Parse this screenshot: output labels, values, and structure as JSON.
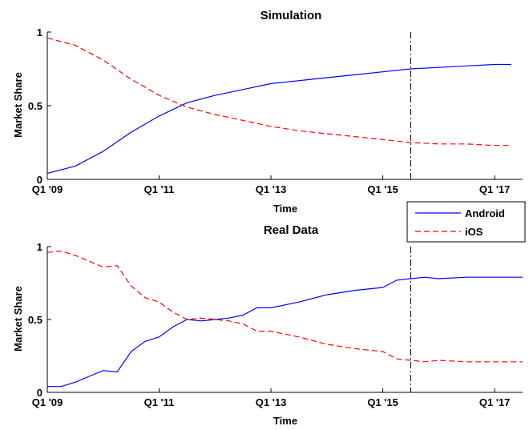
{
  "chart_data": [
    {
      "type": "line",
      "title": "Simulation",
      "xlabel": "Time",
      "ylabel": "Market Share",
      "x_ticks": [
        "Q1 '09",
        "Q1 '11",
        "Q1 '13",
        "Q1 '15",
        "Q1 '17"
      ],
      "y_ticks": [
        "0",
        "0.5",
        "1"
      ],
      "xlim": [
        2009,
        2017.5
      ],
      "ylim": [
        0,
        1
      ],
      "vline": 2015.5,
      "series": [
        {
          "name": "Android",
          "color": "#0000ff",
          "style": "solid",
          "points": [
            [
              2009,
              0.04
            ],
            [
              2009.5,
              0.09
            ],
            [
              2010,
              0.19
            ],
            [
              2010.5,
              0.32
            ],
            [
              2011,
              0.43
            ],
            [
              2011.5,
              0.52
            ],
            [
              2012,
              0.57
            ],
            [
              2012.5,
              0.61
            ],
            [
              2013,
              0.65
            ],
            [
              2013.5,
              0.67
            ],
            [
              2014,
              0.69
            ],
            [
              2014.5,
              0.71
            ],
            [
              2015,
              0.73
            ],
            [
              2015.5,
              0.75
            ],
            [
              2016,
              0.76
            ],
            [
              2016.5,
              0.77
            ],
            [
              2017,
              0.78
            ],
            [
              2017.3,
              0.78
            ]
          ]
        },
        {
          "name": "iOS",
          "color": "#ff0000",
          "style": "dashed",
          "points": [
            [
              2009,
              0.96
            ],
            [
              2009.5,
              0.91
            ],
            [
              2010,
              0.81
            ],
            [
              2010.5,
              0.68
            ],
            [
              2011,
              0.57
            ],
            [
              2011.5,
              0.49
            ],
            [
              2012,
              0.44
            ],
            [
              2012.5,
              0.4
            ],
            [
              2013,
              0.36
            ],
            [
              2013.5,
              0.33
            ],
            [
              2014,
              0.31
            ],
            [
              2014.5,
              0.29
            ],
            [
              2015,
              0.27
            ],
            [
              2015.5,
              0.25
            ],
            [
              2016,
              0.24
            ],
            [
              2016.5,
              0.24
            ],
            [
              2017,
              0.23
            ],
            [
              2017.3,
              0.23
            ]
          ]
        }
      ]
    },
    {
      "type": "line",
      "title": "Real Data",
      "xlabel": "Time",
      "ylabel": "Market Share",
      "x_ticks": [
        "Q1 '09",
        "Q1 '11",
        "Q1 '13",
        "Q1 '15",
        "Q1 '17"
      ],
      "y_ticks": [
        "0",
        "0.5",
        "1"
      ],
      "xlim": [
        2009,
        2017.5
      ],
      "ylim": [
        0,
        1
      ],
      "vline": 2015.5,
      "legend": {
        "position": "top-right",
        "entries": [
          "Android",
          "iOS"
        ]
      },
      "series": [
        {
          "name": "Android",
          "color": "#0000ff",
          "style": "solid",
          "points": [
            [
              2009,
              0.04
            ],
            [
              2009.25,
              0.04
            ],
            [
              2009.5,
              0.07
            ],
            [
              2009.75,
              0.11
            ],
            [
              2010,
              0.15
            ],
            [
              2010.25,
              0.14
            ],
            [
              2010.5,
              0.28
            ],
            [
              2010.75,
              0.35
            ],
            [
              2011,
              0.38
            ],
            [
              2011.25,
              0.45
            ],
            [
              2011.5,
              0.5
            ],
            [
              2011.75,
              0.49
            ],
            [
              2012,
              0.5
            ],
            [
              2012.25,
              0.51
            ],
            [
              2012.5,
              0.53
            ],
            [
              2012.75,
              0.58
            ],
            [
              2013,
              0.58
            ],
            [
              2013.5,
              0.62
            ],
            [
              2014,
              0.67
            ],
            [
              2014.5,
              0.7
            ],
            [
              2015,
              0.72
            ],
            [
              2015.25,
              0.77
            ],
            [
              2015.5,
              0.78
            ],
            [
              2015.75,
              0.79
            ],
            [
              2016,
              0.78
            ],
            [
              2016.5,
              0.79
            ],
            [
              2017,
              0.79
            ],
            [
              2017.5,
              0.79
            ]
          ]
        },
        {
          "name": "iOS",
          "color": "#ff0000",
          "style": "dashed",
          "points": [
            [
              2009,
              0.96
            ],
            [
              2009.25,
              0.97
            ],
            [
              2009.5,
              0.94
            ],
            [
              2009.75,
              0.9
            ],
            [
              2010,
              0.86
            ],
            [
              2010.25,
              0.87
            ],
            [
              2010.5,
              0.73
            ],
            [
              2010.75,
              0.65
            ],
            [
              2011,
              0.62
            ],
            [
              2011.25,
              0.55
            ],
            [
              2011.5,
              0.5
            ],
            [
              2011.75,
              0.51
            ],
            [
              2012,
              0.5
            ],
            [
              2012.25,
              0.49
            ],
            [
              2012.5,
              0.47
            ],
            [
              2012.75,
              0.42
            ],
            [
              2013,
              0.42
            ],
            [
              2013.5,
              0.38
            ],
            [
              2014,
              0.33
            ],
            [
              2014.5,
              0.3
            ],
            [
              2015,
              0.28
            ],
            [
              2015.25,
              0.23
            ],
            [
              2015.5,
              0.22
            ],
            [
              2015.75,
              0.21
            ],
            [
              2016,
              0.22
            ],
            [
              2016.5,
              0.21
            ],
            [
              2017,
              0.21
            ],
            [
              2017.5,
              0.21
            ]
          ]
        }
      ]
    }
  ]
}
